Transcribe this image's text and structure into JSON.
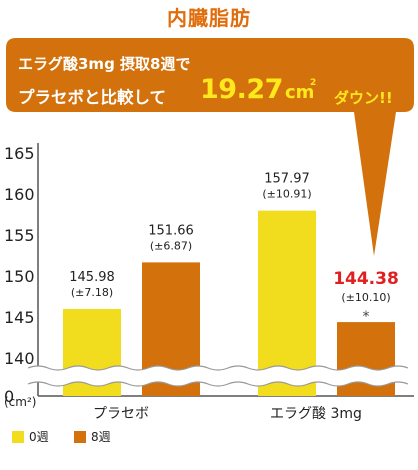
{
  "title": "内臓脂肪",
  "callout": {
    "line1": "エラグ酸3mg 摂取8週で",
    "line2": "プラセボと比較して",
    "highlight": "19.27",
    "unit": "cm",
    "unit_sup": "2",
    "tail": "ダウン!!"
  },
  "colors": {
    "week0": "#f1dc1e",
    "week8": "#d3720d",
    "callout_bg": "#d3720d",
    "significant": "#e02020",
    "title": "#e06d0c"
  },
  "chart_data": {
    "type": "bar",
    "categories": [
      "プラセボ",
      "エラグ酸 3mg"
    ],
    "series": [
      {
        "name": "0週",
        "values": [
          145.98,
          157.97
        ],
        "labels": [
          "145.98",
          "157.97"
        ],
        "sd_labels": [
          "(±7.18)",
          "(±10.91)"
        ]
      },
      {
        "name": "8週",
        "values": [
          151.66,
          144.38
        ],
        "labels": [
          "151.66",
          "144.38"
        ],
        "sd_labels": [
          "(±6.87)",
          "(±10.10)"
        ]
      }
    ],
    "ylabel": "(cm²)",
    "yticks": [
      "165",
      "160",
      "155",
      "150",
      "145",
      "140",
      "0"
    ],
    "ylim": [
      140,
      165
    ],
    "axis_break": true,
    "significance_mark": "*",
    "legend_position": "bottom-left"
  }
}
